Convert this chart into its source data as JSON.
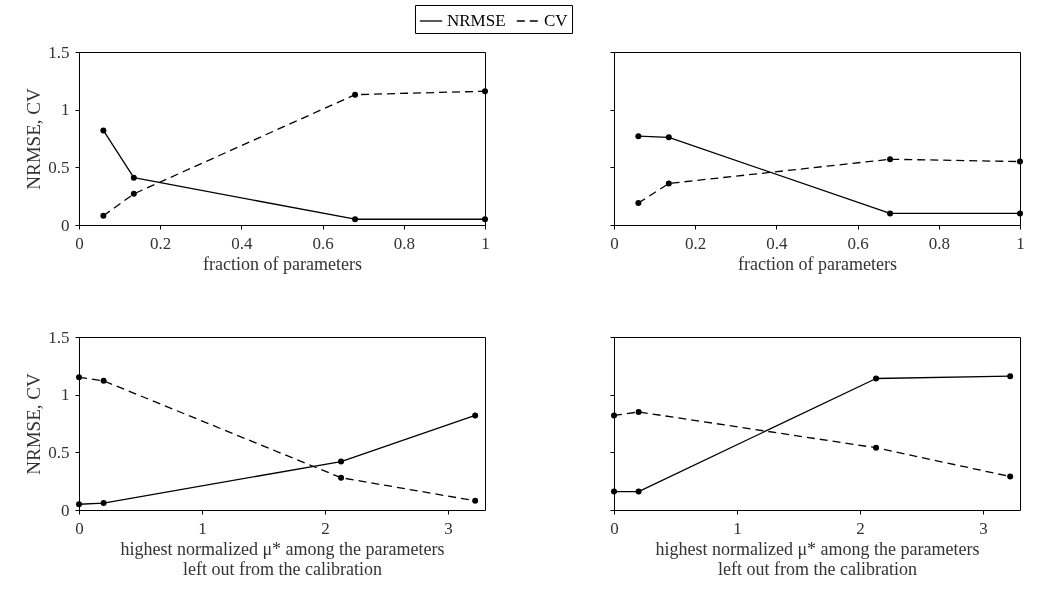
{
  "chart_data": [
    {
      "type": "line",
      "xlabel": "fraction of parameters",
      "ylabel": "NRMSE, CV",
      "x": [
        0.06,
        0.135,
        0.68,
        1
      ],
      "xlim": [
        0,
        1
      ],
      "xticks": [
        0,
        0.2,
        0.4,
        0.6,
        0.8,
        1
      ],
      "ylim": [
        0,
        1.5
      ],
      "yticks": [
        0,
        0.5,
        1,
        1.5
      ],
      "grid": false,
      "legend": "top",
      "marker": "circle",
      "series": [
        {
          "name": "NRMSE",
          "color": "#000000",
          "line_style": "solid",
          "values": [
            0.82,
            0.41,
            0.05,
            0.05
          ]
        },
        {
          "name": "CV",
          "color": "#000000",
          "line_style": "dashed",
          "values": [
            0.08,
            0.27,
            1.13,
            1.16
          ]
        }
      ]
    },
    {
      "type": "line",
      "xlabel": "fraction of parameters",
      "x": [
        0.06,
        0.135,
        0.68,
        1
      ],
      "xlim": [
        0,
        1
      ],
      "xticks": [
        0,
        0.2,
        0.4,
        0.6,
        0.8,
        1
      ],
      "ylim": [
        0,
        1.5
      ],
      "yticks": [
        0,
        0.5,
        1,
        1.5
      ],
      "tick_labels": "x",
      "grid": false,
      "marker": "circle",
      "series": [
        {
          "color": "#000000",
          "line_style": "solid",
          "values": [
            0.77,
            0.76,
            0.1,
            0.1
          ]
        },
        {
          "color": "#000000",
          "line_style": "dashed",
          "values": [
            0.19,
            0.36,
            0.57,
            0.55
          ]
        }
      ]
    },
    {
      "type": "line",
      "xlabel": "highest normalized μ* among the parameters\nleft out from the calibration",
      "ylabel": "NRMSE, CV",
      "x": [
        0,
        0.2,
        2.13,
        3.22
      ],
      "xlim": [
        0,
        3.3
      ],
      "xticks": [
        0,
        1,
        2,
        3
      ],
      "ylim": [
        0,
        1.5
      ],
      "yticks": [
        0,
        0.5,
        1,
        1.5
      ],
      "grid": false,
      "marker": "circle",
      "series": [
        {
          "color": "#000000",
          "line_style": "solid",
          "values": [
            0.05,
            0.06,
            0.42,
            0.82
          ]
        },
        {
          "color": "#000000",
          "line_style": "dashed",
          "values": [
            1.15,
            1.12,
            0.28,
            0.08
          ]
        }
      ]
    },
    {
      "type": "line",
      "xlabel": "highest normalized μ* among the parameters\nleft out from the calibration",
      "x": [
        0,
        0.2,
        2.13,
        3.22
      ],
      "xlim": [
        0,
        3.3
      ],
      "xticks": [
        0,
        1,
        2,
        3
      ],
      "ylim": [
        0,
        1.5
      ],
      "yticks": [
        0,
        0.5,
        1,
        1.5
      ],
      "tick_labels": "x",
      "grid": false,
      "marker": "circle",
      "series": [
        {
          "color": "#000000",
          "line_style": "solid",
          "values": [
            0.16,
            0.16,
            1.14,
            1.16
          ]
        },
        {
          "color": "#000000",
          "line_style": "dashed",
          "values": [
            0.82,
            0.85,
            0.54,
            0.29
          ]
        }
      ]
    }
  ]
}
